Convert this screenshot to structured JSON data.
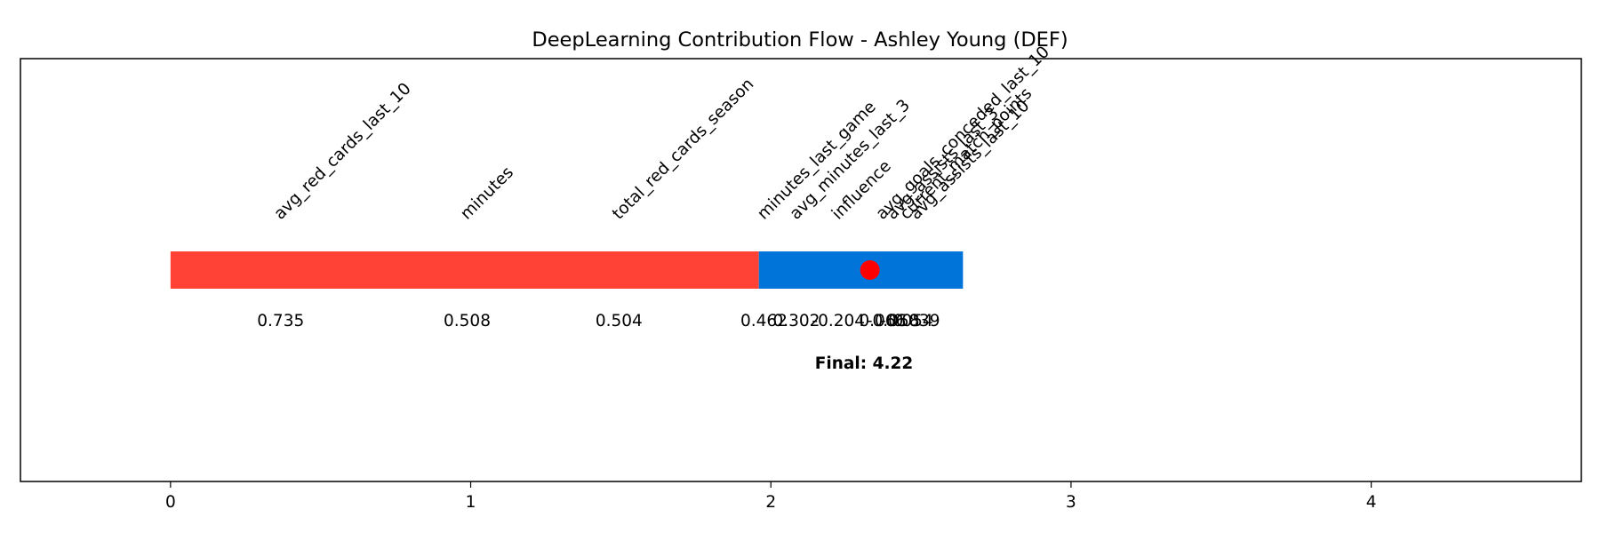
{
  "chart_data": {
    "type": "bar",
    "title": "DeepLearning Contribution Flow - Ashley Young (DEF)",
    "xlabel": "",
    "ylabel": "",
    "xlim": [
      -0.5,
      4.7
    ],
    "xticks": [
      0,
      1,
      2,
      3,
      4
    ],
    "tick_labels": [
      "0",
      "1",
      "2",
      "3",
      "4"
    ],
    "grid": false,
    "series": [
      {
        "color": "#ff4136",
        "start": 0,
        "end": 1.96
      },
      {
        "color": "#0074d9",
        "start": 1.96,
        "end": 2.64
      }
    ],
    "features": [
      {
        "name": "avg_red_cards_last_10",
        "value_label": "0.735",
        "pos": 0.367
      },
      {
        "name": "minutes",
        "value_label": "0.508",
        "pos": 0.988
      },
      {
        "name": "total_red_cards_season",
        "value_label": "0.504",
        "pos": 1.494
      },
      {
        "name": "minutes_last_game",
        "value_label": "0.462",
        "pos": 1.977
      },
      {
        "name": "avg_minutes_last_3",
        "value_label": "0.302",
        "pos": 2.085
      },
      {
        "name": "influence",
        "value_label": "-0.204",
        "pos": 2.225
      },
      {
        "name": "avg_goals_conceded_last_10",
        "value_label": "0.066",
        "pos": 2.372
      },
      {
        "name": "avg_assists_last_3",
        "value_label": "-0.058",
        "pos": 2.407
      },
      {
        "name": "current_match_points",
        "value_label": "-0.054",
        "pos": 2.452
      },
      {
        "name": "avg_assists_last_10",
        "value_label": "0.039",
        "pos": 2.485
      }
    ],
    "marker": {
      "x": 2.33,
      "color": "#ff0000"
    },
    "final_label": "Final: 4.22"
  }
}
